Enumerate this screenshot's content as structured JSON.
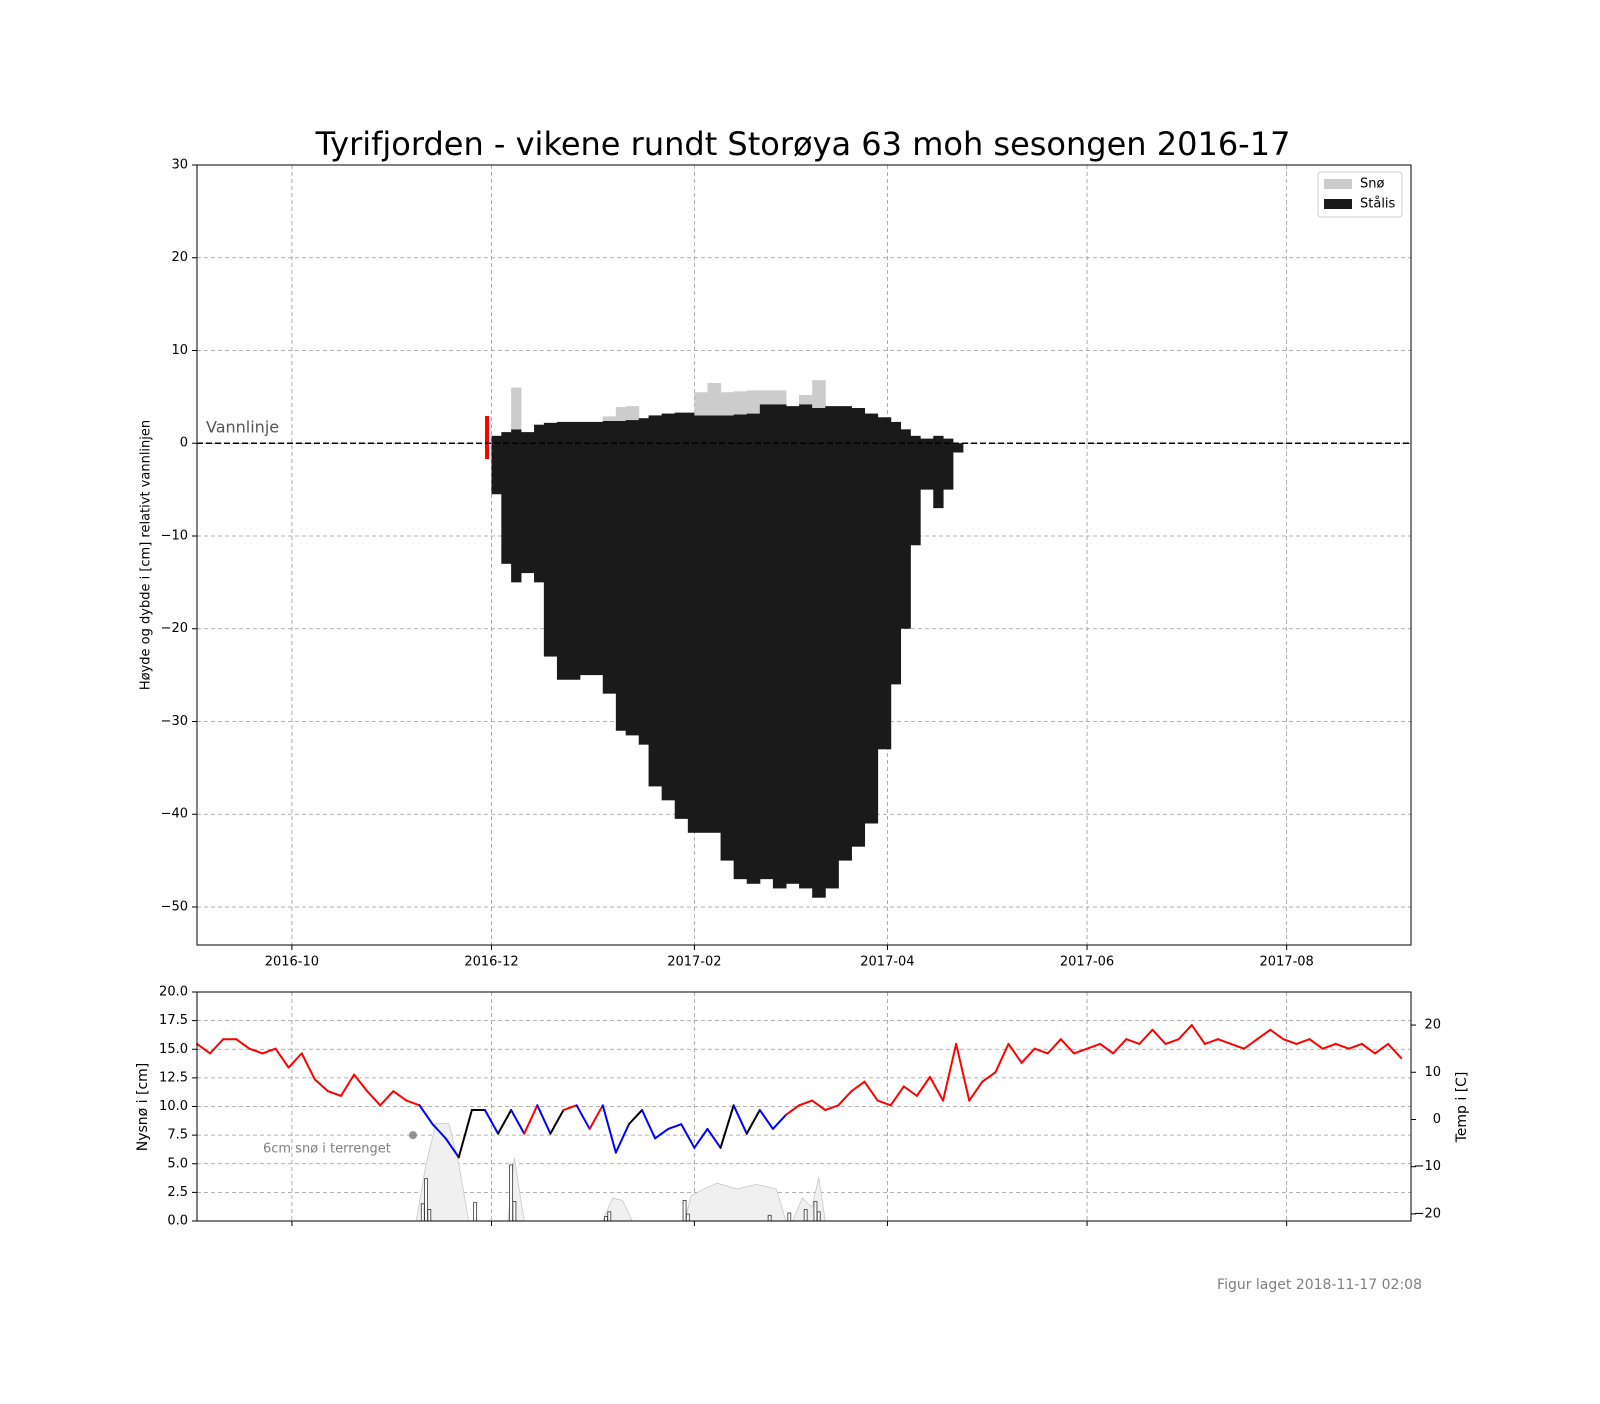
{
  "chart_data": [
    {
      "type": "ice",
      "title": "Tyrifjorden - vikene rundt Storøya 63 moh sesongen 2016-17",
      "y_label": "Høyde og dybde i [cm] relativt vannlinjen",
      "xlim": [
        "2016-09-02",
        "2017-09-08"
      ],
      "xticks": [
        "2016-10",
        "2016-12",
        "2017-02",
        "2017-04",
        "2017-06",
        "2017-08"
      ],
      "ylim": [
        -54.1,
        30
      ],
      "yticks": [
        {
          "value": -50,
          "label": "−50"
        },
        {
          "value": -40,
          "label": "−40"
        },
        {
          "value": -30,
          "label": "−30"
        },
        {
          "value": -20,
          "label": "−20"
        },
        {
          "value": -10,
          "label": "−10"
        },
        0,
        10,
        20,
        30
      ],
      "grid": true,
      "legend": "upper right",
      "water_line": {
        "label": "Vannlinje",
        "value": 0
      },
      "x": [
        "2016-12-01",
        "2016-12-04",
        "2016-12-07",
        "2016-12-10",
        "2016-12-14",
        "2016-12-17",
        "2016-12-21",
        "2016-12-28",
        "2017-01-04",
        "2017-01-08",
        "2017-01-11",
        "2017-01-15",
        "2017-01-18",
        "2017-01-22",
        "2017-01-26",
        "2017-01-30",
        "2017-02-01",
        "2017-02-05",
        "2017-02-09",
        "2017-02-13",
        "2017-02-17",
        "2017-02-21",
        "2017-02-25",
        "2017-03-01",
        "2017-03-05",
        "2017-03-09",
        "2017-03-13",
        "2017-03-17",
        "2017-03-21",
        "2017-03-25",
        "2017-03-29",
        "2017-04-02",
        "2017-04-05",
        "2017-04-08",
        "2017-04-11",
        "2017-04-15",
        "2017-04-18",
        "2017-04-21"
      ],
      "series": [
        {
          "name": "Stålis",
          "color": "#1a1a1a",
          "low": [
            -5.5,
            -13,
            -15,
            -14,
            -15,
            -23,
            -25.5,
            -25,
            -27,
            -31,
            -31.5,
            -32.5,
            -37,
            -38.5,
            -40.5,
            -42,
            -42,
            -42,
            -45,
            -47,
            -47.5,
            -47,
            -48,
            -47.5,
            -48,
            -49,
            -48,
            -45,
            -43.5,
            -41,
            -33,
            -26,
            -20,
            -11,
            -5,
            -7,
            -5,
            -1
          ],
          "high": [
            0.8,
            1.2,
            1.5,
            1.2,
            2,
            2.2,
            2.3,
            2.3,
            2.4,
            2.4,
            2.5,
            2.7,
            3,
            3.2,
            3.3,
            3.3,
            3,
            3,
            3,
            3.1,
            3.2,
            4.2,
            4.2,
            4,
            4.2,
            3.8,
            4,
            4,
            3.8,
            3.2,
            2.8,
            2.3,
            1.5,
            0.8,
            0.5,
            0.8,
            0.5,
            0
          ]
        },
        {
          "name": "Snø",
          "color": "#cccccc",
          "values": [
            0,
            0,
            4.5,
            0,
            0,
            0,
            0,
            0,
            0.5,
            1.5,
            1.5,
            0,
            0,
            0,
            0,
            0,
            2.5,
            3.5,
            2.5,
            2.5,
            2.5,
            1.5,
            1.5,
            0,
            1,
            3,
            0,
            0,
            0,
            0,
            0,
            0,
            0,
            0,
            0,
            0,
            0,
            0
          ]
        }
      ]
    },
    {
      "type": "weather",
      "y_label": "Nysnø i [cm]",
      "y2_label": "Temp i [C]",
      "xlim": [
        "2016-09-02",
        "2017-09-08"
      ],
      "xticks": [
        "2016-10",
        "2016-12",
        "2017-02",
        "2017-04",
        "2017-06",
        "2017-08"
      ],
      "ylim": [
        0,
        20
      ],
      "yticks": [
        {
          "value": 0,
          "label": "0.0"
        },
        {
          "value": 2.5,
          "label": "2.5"
        },
        {
          "value": 5,
          "label": "5.0"
        },
        {
          "value": 7.5,
          "label": "7.5"
        },
        {
          "value": 10,
          "label": "10.0"
        },
        {
          "value": 12.5,
          "label": "12.5"
        },
        {
          "value": 15,
          "label": "15.0"
        },
        {
          "value": 17.5,
          "label": "17.5"
        },
        {
          "value": 20,
          "label": "20.0"
        }
      ],
      "y2lim": [
        -21.5,
        27
      ],
      "y2ticks": [
        {
          "value": -20,
          "label": "−20"
        },
        {
          "value": -10,
          "label": "−10"
        },
        0,
        10,
        20
      ],
      "grid": true,
      "temperature": {
        "axis": "y2",
        "x": [
          "2016-09-02",
          "2016-09-06",
          "2016-09-10",
          "2016-09-14",
          "2016-09-18",
          "2016-09-22",
          "2016-09-26",
          "2016-09-30",
          "2016-10-04",
          "2016-10-08",
          "2016-10-12",
          "2016-10-16",
          "2016-10-20",
          "2016-10-24",
          "2016-10-28",
          "2016-11-01",
          "2016-11-05",
          "2016-11-09",
          "2016-11-13",
          "2016-11-17",
          "2016-11-21",
          "2016-11-25",
          "2016-11-29",
          "2016-12-03",
          "2016-12-07",
          "2016-12-11",
          "2016-12-15",
          "2016-12-19",
          "2016-12-23",
          "2016-12-27",
          "2016-12-31",
          "2017-01-04",
          "2017-01-08",
          "2017-01-12",
          "2017-01-16",
          "2017-01-20",
          "2017-01-24",
          "2017-01-28",
          "2017-02-01",
          "2017-02-05",
          "2017-02-09",
          "2017-02-13",
          "2017-02-17",
          "2017-02-21",
          "2017-02-25",
          "2017-03-01",
          "2017-03-05",
          "2017-03-09",
          "2017-03-13",
          "2017-03-17",
          "2017-03-21",
          "2017-03-25",
          "2017-03-29",
          "2017-04-02",
          "2017-04-06",
          "2017-04-10",
          "2017-04-14",
          "2017-04-18",
          "2017-04-22",
          "2017-04-26",
          "2017-04-30",
          "2017-05-04",
          "2017-05-08",
          "2017-05-12",
          "2017-05-16",
          "2017-05-20",
          "2017-05-24",
          "2017-05-28",
          "2017-06-01",
          "2017-06-05",
          "2017-06-09",
          "2017-06-13",
          "2017-06-17",
          "2017-06-21",
          "2017-06-25",
          "2017-06-29",
          "2017-07-03",
          "2017-07-07",
          "2017-07-11",
          "2017-07-15",
          "2017-07-19",
          "2017-07-23",
          "2017-07-27",
          "2017-07-31",
          "2017-08-04",
          "2017-08-08",
          "2017-08-12",
          "2017-08-16",
          "2017-08-20",
          "2017-08-24",
          "2017-08-28",
          "2017-09-01",
          "2017-09-05"
        ],
        "values": [
          16,
          14,
          17,
          17,
          15,
          14,
          15,
          11,
          14,
          8.5,
          6,
          5,
          9.5,
          6,
          3,
          6,
          4,
          3,
          -1,
          -4,
          -8,
          2,
          2,
          -3,
          2,
          -3,
          3,
          -3,
          2,
          3,
          -2,
          3,
          -7,
          -1,
          2,
          -4,
          -2,
          -1,
          -6,
          -2,
          -6,
          3,
          -3,
          2,
          -2,
          1,
          3,
          4,
          2,
          3,
          6,
          8,
          4,
          3,
          7,
          5,
          9,
          4,
          16,
          4,
          8,
          10,
          16,
          12,
          15,
          14,
          17,
          14,
          15,
          16,
          14,
          17,
          16,
          19,
          16,
          17,
          20,
          16,
          17,
          16,
          15,
          17,
          19,
          17,
          16,
          17,
          15,
          16,
          15,
          16,
          14,
          16,
          13
        ],
        "colors": [
          "red",
          "red",
          "red",
          "red",
          "red",
          "red",
          "red",
          "red",
          "red",
          "red",
          "red",
          "red",
          "red",
          "red",
          "red",
          "red",
          "red",
          "red",
          "blue",
          "blue",
          "blue",
          "black",
          "black",
          "blue",
          "black",
          "blue",
          "red",
          "blue",
          "black",
          "red",
          "blue",
          "red",
          "blue",
          "blue",
          "black",
          "blue",
          "blue",
          "blue",
          "blue",
          "blue",
          "blue",
          "black",
          "blue",
          "black",
          "blue",
          "blue",
          "red",
          "red",
          "red",
          "red",
          "red",
          "red",
          "red",
          "red",
          "red",
          "red",
          "red",
          "red",
          "red",
          "red",
          "red",
          "red",
          "red",
          "red",
          "red",
          "red",
          "red",
          "red",
          "red",
          "red",
          "red",
          "red",
          "red",
          "red",
          "red",
          "red",
          "red",
          "red",
          "red",
          "red",
          "red",
          "red",
          "red",
          "red",
          "red",
          "red",
          "red",
          "red",
          "red",
          "red",
          "red",
          "red",
          "red"
        ]
      },
      "new_snow": {
        "color": "#888888",
        "x": [
          "2016-11-10",
          "2016-11-11",
          "2016-11-12",
          "2016-11-26",
          "2016-12-07",
          "2016-12-08",
          "2017-01-05",
          "2017-01-06",
          "2017-01-29",
          "2017-01-30",
          "2017-02-24",
          "2017-03-02",
          "2017-03-07",
          "2017-03-10",
          "2017-03-11"
        ],
        "values": [
          1.5,
          3.7,
          1,
          1.6,
          4.9,
          1.7,
          0.4,
          0.8,
          1.8,
          0.6,
          0.5,
          0.7,
          1,
          1.7,
          0.8
        ]
      },
      "snow_depth": {
        "color": "#dddddd",
        "x": [
          "2016-11-08",
          "2016-11-11",
          "2016-11-14",
          "2016-11-18",
          "2016-11-21",
          "2016-11-24",
          "2016-11-30",
          "2016-12-06",
          "2016-12-08",
          "2016-12-11",
          "2016-12-25",
          "2017-01-04",
          "2017-01-07",
          "2017-01-10",
          "2017-01-13",
          "2017-01-20",
          "2017-01-29",
          "2017-01-31",
          "2017-02-04",
          "2017-02-08",
          "2017-02-14",
          "2017-02-20",
          "2017-02-26",
          "2017-03-01",
          "2017-03-02",
          "2017-03-03",
          "2017-03-06",
          "2017-03-09",
          "2017-03-11",
          "2017-03-13"
        ],
        "values": [
          0,
          5,
          8.5,
          8.5,
          5,
          0,
          null,
          0,
          5.5,
          0,
          null,
          0,
          2,
          1.8,
          0,
          null,
          0,
          2.2,
          2.8,
          3.3,
          2.8,
          3.2,
          2.8,
          0,
          null,
          0,
          2,
          1.2,
          3.8,
          0
        ]
      },
      "annotation": {
        "text": "6cm snø i terrenget",
        "x": "2016-11-07",
        "y": 7.5
      }
    }
  ],
  "footer": "Figur laget 2018-11-17 02:08"
}
